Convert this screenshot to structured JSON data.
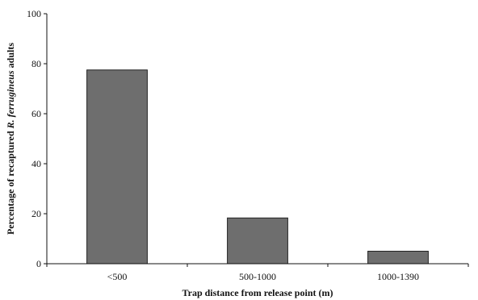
{
  "chart_data": {
    "type": "bar",
    "categories": [
      "<500",
      "500-1000",
      "1000-1390"
    ],
    "values": [
      77.5,
      18.3,
      5.0
    ],
    "xlabel": "Trap distance from release point (m)",
    "ylabel_parts": {
      "prefix": "Percentage of recaptured ",
      "species": "R. ferrugineus",
      "suffix": " adults"
    },
    "ylim": [
      0,
      100
    ],
    "yticks": [
      0,
      20,
      40,
      60,
      80,
      100
    ],
    "grid": false,
    "bar_color": "#6e6e6e"
  }
}
